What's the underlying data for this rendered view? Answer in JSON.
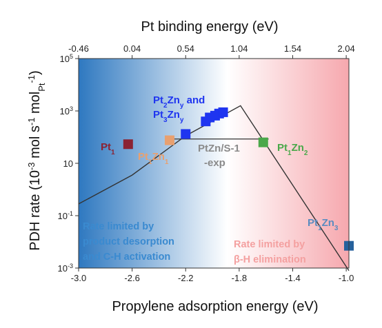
{
  "chart_data": {
    "type": "scatter",
    "title": "",
    "xlabel": "Propylene adsorption energy (eV)",
    "x2label": "Pt binding energy (eV)",
    "ylabel_main": "PDH rate (10",
    "ylabel_exp1": "-3",
    "ylabel_mid": " mol s",
    "ylabel_exp2": "-1",
    "ylabel_mid2": " mol",
    "ylabel_sub": "Pt",
    "ylabel_exp3": "-1",
    "ylabel_close": ")",
    "xlim": [
      -3.0,
      -0.98
    ],
    "yscale": "log",
    "ylim_log10": [
      -3,
      5
    ],
    "x_ticks": [
      -3.0,
      -2.6,
      -2.2,
      -1.8,
      -1.4,
      -1.0
    ],
    "x_tick_labels": [
      "-3.0",
      "-2.6",
      "-2.2",
      "-1.8",
      "-1.4",
      "-1.0"
    ],
    "x2_ticks": [
      -0.46,
      0.04,
      0.54,
      1.04,
      1.54,
      2.04
    ],
    "x2_tick_labels": [
      "-0.46",
      "0.04",
      "0.54",
      "1.04",
      "1.54",
      "2.04"
    ],
    "y_ticks": [
      {
        "log": -3,
        "base": "10",
        "exp": "-3"
      },
      {
        "log": -1,
        "base": "10",
        "exp": "-1"
      },
      {
        "log": 1,
        "base": "10",
        "exp": ""
      },
      {
        "log": 3,
        "base": "10",
        "exp": "3"
      },
      {
        "log": 5,
        "base": "10",
        "exp": "5"
      }
    ],
    "volcano_line": [
      {
        "x": -3.0,
        "log": -0.55
      },
      {
        "x": -2.6,
        "log": 0.55
      },
      {
        "x": -2.2,
        "log": 2.05
      },
      {
        "x": -1.79,
        "log": 3.2
      },
      {
        "x": -0.98,
        "log": -3.1
      }
    ],
    "experimental_line": {
      "x": [
        -2.35,
        -1.58
      ],
      "log": 1.93
    },
    "series": [
      {
        "name": "Pt1",
        "color": "#8b2232",
        "points": [
          {
            "x": -2.63,
            "log": 1.73
          }
        ]
      },
      {
        "name": "Pt1Zn1",
        "color": "#e8a070",
        "points": [
          {
            "x": -2.32,
            "log": 1.88
          }
        ]
      },
      {
        "name": "Pt2Zny and Pt3Zny",
        "color": "#1f35f0",
        "points": [
          {
            "x": -2.2,
            "log": 2.12
          },
          {
            "x": -2.05,
            "log": 2.6
          },
          {
            "x": -2.02,
            "log": 2.75
          },
          {
            "x": -1.98,
            "log": 2.82
          },
          {
            "x": -1.95,
            "log": 2.9
          },
          {
            "x": -1.92,
            "log": 2.95
          }
        ]
      },
      {
        "name": "Pt1Zn2",
        "color": "#4aa84a",
        "points": [
          {
            "x": -1.62,
            "log": 1.8
          }
        ]
      },
      {
        "name": "Pt1Zn3",
        "color": "#26619c",
        "points": [
          {
            "x": -0.98,
            "log": -2.15
          }
        ]
      }
    ],
    "labels": {
      "pt1": {
        "base": "Pt",
        "sub": "1",
        "color": "#8b2232"
      },
      "pt1zn1": {
        "a": "Pt",
        "s1": "1",
        "b": "Zn",
        "s2": "1",
        "color": "#e8a070"
      },
      "pt2zny_line1": {
        "a": "Pt",
        "s1": "2",
        "b": "Zn",
        "s2": "y",
        "c": " and",
        "color": "#1f35f0"
      },
      "pt3zny_line2": {
        "a": "Pt",
        "s1": "3",
        "b": "Zn",
        "s2": "y",
        "color": "#1f35f0"
      },
      "ptzn_exp_line1": "PtZn/S-1",
      "ptzn_exp_line2": "-exp",
      "ptzn_exp_color": "#8a8a8a",
      "pt1zn2": {
        "a": "Pt",
        "s1": "1",
        "b": "Zn",
        "s2": "2",
        "color": "#4aa84a"
      },
      "pt1zn3": {
        "a": "Pt",
        "s1": "1",
        "b": "Zn",
        "s2": "3",
        "color": "#5a8cc0"
      }
    },
    "annotations": {
      "left": [
        "Rate limited by",
        "product desorption",
        "and C-H activation"
      ],
      "left_color": "#3a8ad0",
      "right": [
        "Rate limited by",
        "β-H elimination"
      ],
      "right_color": "#f4a0a0"
    },
    "background_colors": {
      "left": "#2e78c0",
      "mid": "#ffffff",
      "right": "#f6a8ae"
    }
  }
}
